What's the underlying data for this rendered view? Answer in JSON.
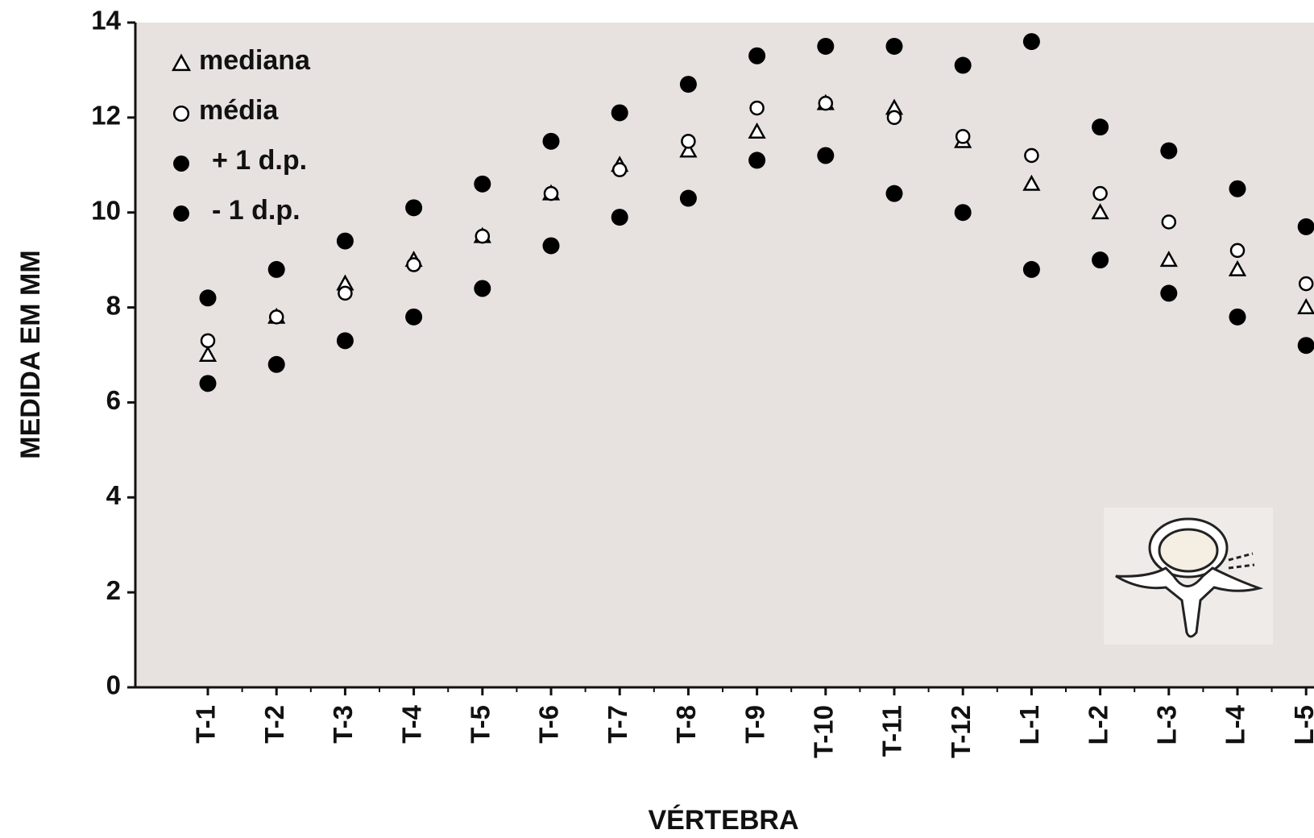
{
  "chart_data": {
    "type": "scatter",
    "x_label": "VÉRTEBRA",
    "y_label": "MEDIDA EM MM",
    "categories": [
      "T-1",
      "T-2",
      "T-3",
      "T-4",
      "T-5",
      "T-6",
      "T-7",
      "T-8",
      "T-9",
      "T-10",
      "T-11",
      "T-12",
      "L-1",
      "L-2",
      "L-3",
      "L-4",
      "L-5"
    ],
    "series": [
      {
        "name": "mediana",
        "color": "#000000",
        "marker": "triangle-open",
        "values": [
          7.0,
          7.8,
          8.5,
          9.0,
          9.5,
          10.4,
          11.0,
          11.3,
          11.7,
          12.3,
          12.2,
          11.5,
          10.6,
          10.0,
          9.0,
          8.8,
          8.0
        ]
      },
      {
        "name": "média",
        "color": "#000000",
        "marker": "circle-open",
        "values": [
          7.3,
          7.8,
          8.3,
          8.9,
          9.5,
          10.4,
          10.9,
          11.5,
          12.2,
          12.3,
          12.0,
          11.6,
          11.2,
          10.4,
          9.8,
          9.2,
          8.5
        ]
      },
      {
        "name": "+ 1 d.p.",
        "color": "#000000",
        "marker": "circle",
        "values": [
          8.2,
          8.8,
          9.4,
          10.1,
          10.6,
          11.5,
          12.1,
          12.7,
          13.3,
          13.5,
          13.5,
          13.1,
          13.6,
          11.8,
          11.3,
          10.5,
          9.7
        ]
      },
      {
        "name": "- 1 d.p.",
        "color": "#000000",
        "marker": "circle",
        "values": [
          6.4,
          6.8,
          7.3,
          7.8,
          8.4,
          9.3,
          9.9,
          10.3,
          11.1,
          11.2,
          10.4,
          10.0,
          8.8,
          9.0,
          8.3,
          7.8,
          7.2
        ]
      }
    ],
    "ylim": [
      0,
      14
    ],
    "yticks": [
      0,
      2,
      4,
      6,
      8,
      10,
      12,
      14
    ],
    "legend": "top-left"
  }
}
